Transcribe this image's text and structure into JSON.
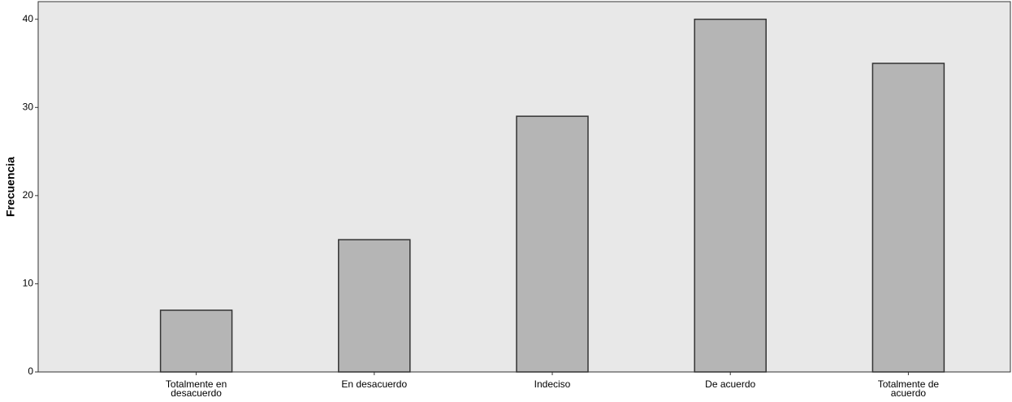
{
  "chart_data": {
    "type": "bar",
    "y_label": "Frecuencia",
    "categories": [
      "Totalmente en desacuerdo",
      "En desacuerdo",
      "Indeciso",
      "De acuerdo",
      "Totalmente de acuerdo"
    ],
    "values": [
      7,
      15,
      29,
      40,
      35
    ],
    "color": "#b5b5b5",
    "ylim": [
      0,
      42
    ],
    "yticks": [
      0,
      10,
      20,
      30,
      40
    ],
    "grid": false
  }
}
